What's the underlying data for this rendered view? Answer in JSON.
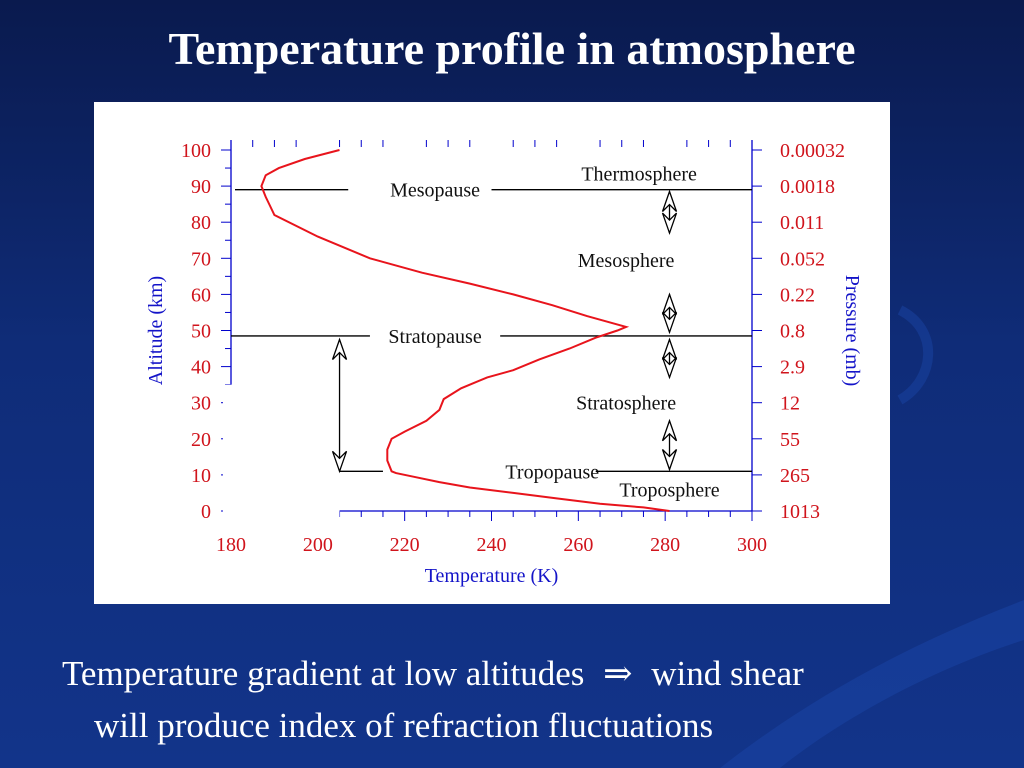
{
  "slide": {
    "title": "Temperature profile in atmosphere",
    "caption_line1_a": "Temperature gradient at low altitudes",
    "arrow_symbol": "⇒",
    "caption_line1_b": "wind shear",
    "caption_line2": "will produce index of refraction fluctuations"
  },
  "chart_data": {
    "type": "line",
    "xlabel": "Temperature (K)",
    "ylabel": "Altitude (km)",
    "y2label": "Pressure (mb)",
    "xlim": [
      180,
      300
    ],
    "ylim": [
      0,
      100
    ],
    "x_ticks": [
      180,
      200,
      220,
      240,
      260,
      280,
      300
    ],
    "y_ticks": [
      0,
      10,
      20,
      30,
      40,
      50,
      60,
      70,
      80,
      90,
      100
    ],
    "pressure_ticks": [
      {
        "altitude": 0,
        "label": "1013"
      },
      {
        "altitude": 10,
        "label": "265"
      },
      {
        "altitude": 20,
        "label": "55"
      },
      {
        "altitude": 30,
        "label": "12"
      },
      {
        "altitude": 40,
        "label": "2.9"
      },
      {
        "altitude": 50,
        "label": "0.8"
      },
      {
        "altitude": 60,
        "label": "0.22"
      },
      {
        "altitude": 70,
        "label": "0.052"
      },
      {
        "altitude": 80,
        "label": "0.011"
      },
      {
        "altitude": 90,
        "label": "0.0018"
      },
      {
        "altitude": 100,
        "label": "0.00032"
      }
    ],
    "series": [
      {
        "x": [
          281,
          275,
          265,
          255,
          245,
          235,
          228,
          222,
          218,
          217,
          216,
          216,
          217,
          220,
          225,
          228,
          229,
          233,
          239,
          245,
          251,
          258,
          264,
          269,
          271,
          268,
          262,
          254,
          245,
          235,
          224,
          212,
          200,
          190,
          189,
          188,
          187,
          188,
          191,
          197,
          205
        ],
        "y": [
          0,
          1,
          2,
          3.5,
          5,
          6.5,
          8,
          9.5,
          10.5,
          11,
          14,
          17,
          20,
          22,
          25,
          28,
          31,
          34,
          37,
          39,
          42,
          45,
          48,
          50,
          51,
          52,
          54,
          57,
          60,
          63,
          66,
          70,
          76,
          82,
          84.5,
          87,
          90,
          93,
          95,
          97.5,
          100
        ]
      }
    ],
    "boundaries": [
      {
        "label": "Mesopause",
        "altitude": 89
      },
      {
        "label": "Stratopause",
        "altitude": 48.5
      },
      {
        "label": "Tropopause",
        "altitude": 11
      }
    ],
    "layers": [
      "Thermosphere",
      "Mesosphere",
      "Stratosphere",
      "Troposphere"
    ],
    "colors": {
      "profile": "#e8141c",
      "left_axis": "#d0141c",
      "right_axis": "#d0141c",
      "axis_line": "#0000cc",
      "axis_title": "#1414c8"
    }
  }
}
